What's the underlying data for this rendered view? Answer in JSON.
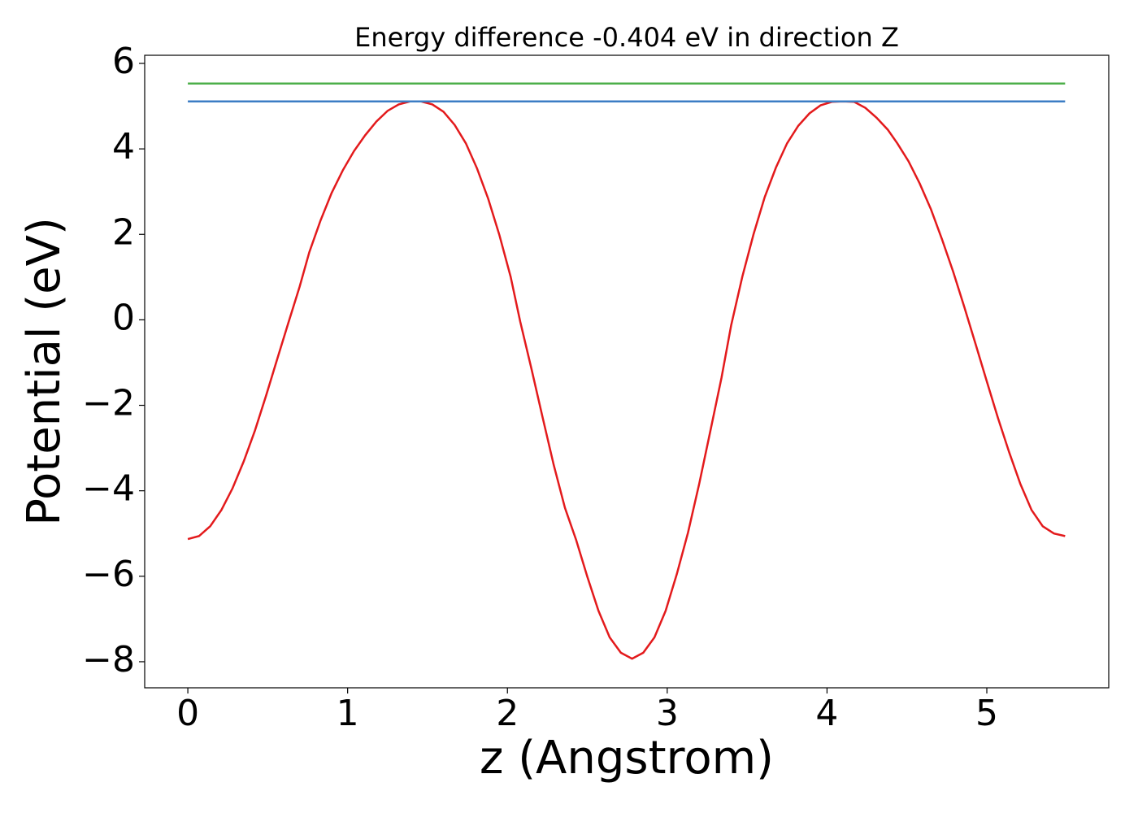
{
  "chart_data": {
    "type": "line",
    "title": "Energy difference -0.404 eV in direction Z",
    "xlabel": "z (Angstrom)",
    "ylabel": "Potential (eV)",
    "xlim": [
      -0.27,
      5.763
    ],
    "ylim": [
      -8.61,
      6.19
    ],
    "xticks": [
      0,
      1,
      2,
      3,
      4,
      5
    ],
    "yticks": [
      {
        "value": -8,
        "label": "−8"
      },
      {
        "value": -6,
        "label": "−6"
      },
      {
        "value": -4,
        "label": "−4"
      },
      {
        "value": -2,
        "label": "−2"
      },
      0,
      2,
      4,
      6
    ],
    "grid": false,
    "series": [
      {
        "color": "#e31a1c",
        "x": [
          0,
          0.07,
          0.14,
          0.21,
          0.28,
          0.35,
          0.42,
          0.49,
          0.56,
          0.63,
          0.7,
          0.76,
          0.83,
          0.9,
          0.97,
          1.04,
          1.11,
          1.18,
          1.25,
          1.32,
          1.39,
          1.46,
          1.53,
          1.6,
          1.67,
          1.74,
          1.81,
          1.88,
          1.95,
          2.02,
          2.08,
          2.15,
          2.22,
          2.29,
          2.36,
          2.43,
          2.5,
          2.57,
          2.64,
          2.71,
          2.78,
          2.85,
          2.92,
          2.99,
          3.06,
          3.13,
          3.2,
          3.27,
          3.34,
          3.4,
          3.47,
          3.54,
          3.61,
          3.68,
          3.75,
          3.82,
          3.89,
          3.96,
          4.03,
          4.1,
          4.17,
          4.24,
          4.31,
          4.38,
          4.44,
          4.51,
          4.58,
          4.65,
          4.72,
          4.79,
          4.86,
          4.93,
          5.0,
          5.07,
          5.14,
          5.21,
          5.28,
          5.35,
          5.42,
          5.49
        ],
        "values": [
          -5.13,
          -5.06,
          -4.83,
          -4.45,
          -3.94,
          -3.31,
          -2.59,
          -1.77,
          -0.91,
          -0.06,
          0.78,
          1.58,
          2.32,
          2.97,
          3.5,
          3.95,
          4.32,
          4.64,
          4.89,
          5.04,
          5.11,
          5.11,
          5.04,
          4.87,
          4.56,
          4.13,
          3.54,
          2.83,
          1.98,
          1.01,
          -0.04,
          -1.14,
          -2.28,
          -3.4,
          -4.4,
          -5.15,
          -6.01,
          -6.81,
          -7.43,
          -7.79,
          -7.93,
          -7.79,
          -7.43,
          -6.81,
          -5.95,
          -4.98,
          -3.84,
          -2.6,
          -1.35,
          -0.13,
          1.01,
          2.0,
          2.87,
          3.56,
          4.13,
          4.54,
          4.83,
          5.02,
          5.1,
          5.11,
          5.1,
          4.96,
          4.73,
          4.45,
          4.13,
          3.71,
          3.19,
          2.59,
          1.88,
          1.12,
          0.29,
          -0.57,
          -1.44,
          -2.3,
          -3.1,
          -3.84,
          -4.45,
          -4.83,
          -5.0,
          -5.06
        ]
      },
      {
        "color": "#3b7dc4",
        "x": [
          0,
          5.49
        ],
        "values": [
          5.11,
          5.11
        ]
      },
      {
        "color": "#4daf4a",
        "x": [
          0,
          5.49
        ],
        "values": [
          5.53,
          5.53
        ]
      }
    ]
  }
}
